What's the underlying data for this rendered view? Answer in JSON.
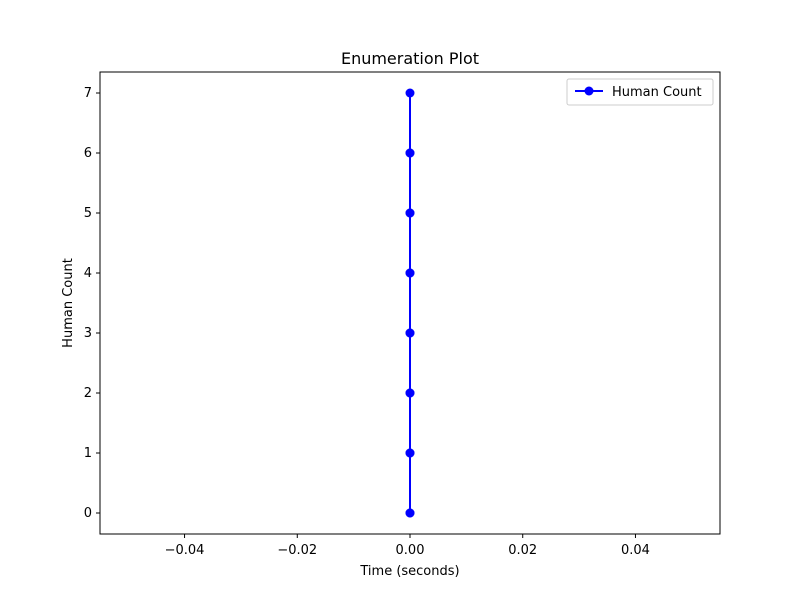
{
  "chart_data": {
    "type": "line",
    "title": "Enumeration Plot",
    "xlabel": "Time (seconds)",
    "ylabel": "Human Count",
    "xlim": [
      -0.055,
      0.055
    ],
    "ylim": [
      -0.35,
      7.35
    ],
    "x_ticks": [
      -0.04,
      -0.02,
      0.0,
      0.02,
      0.04
    ],
    "x_tick_labels": [
      "−0.04",
      "−0.02",
      "0.00",
      "0.02",
      "0.04"
    ],
    "y_ticks": [
      0,
      1,
      2,
      3,
      4,
      5,
      6,
      7
    ],
    "y_tick_labels": [
      "0",
      "1",
      "2",
      "3",
      "4",
      "5",
      "6",
      "7"
    ],
    "grid": false,
    "legend_position": "top-right",
    "series": [
      {
        "name": "Human Count",
        "color": "#0000ff",
        "marker": "circle",
        "x": [
          0,
          0,
          0,
          0,
          0,
          0,
          0,
          0,
          0,
          0,
          0,
          0,
          0,
          0,
          0
        ],
        "y": [
          0,
          1,
          2,
          3,
          4,
          5,
          6,
          7,
          6,
          5,
          4,
          3,
          2,
          1,
          0
        ]
      }
    ]
  }
}
